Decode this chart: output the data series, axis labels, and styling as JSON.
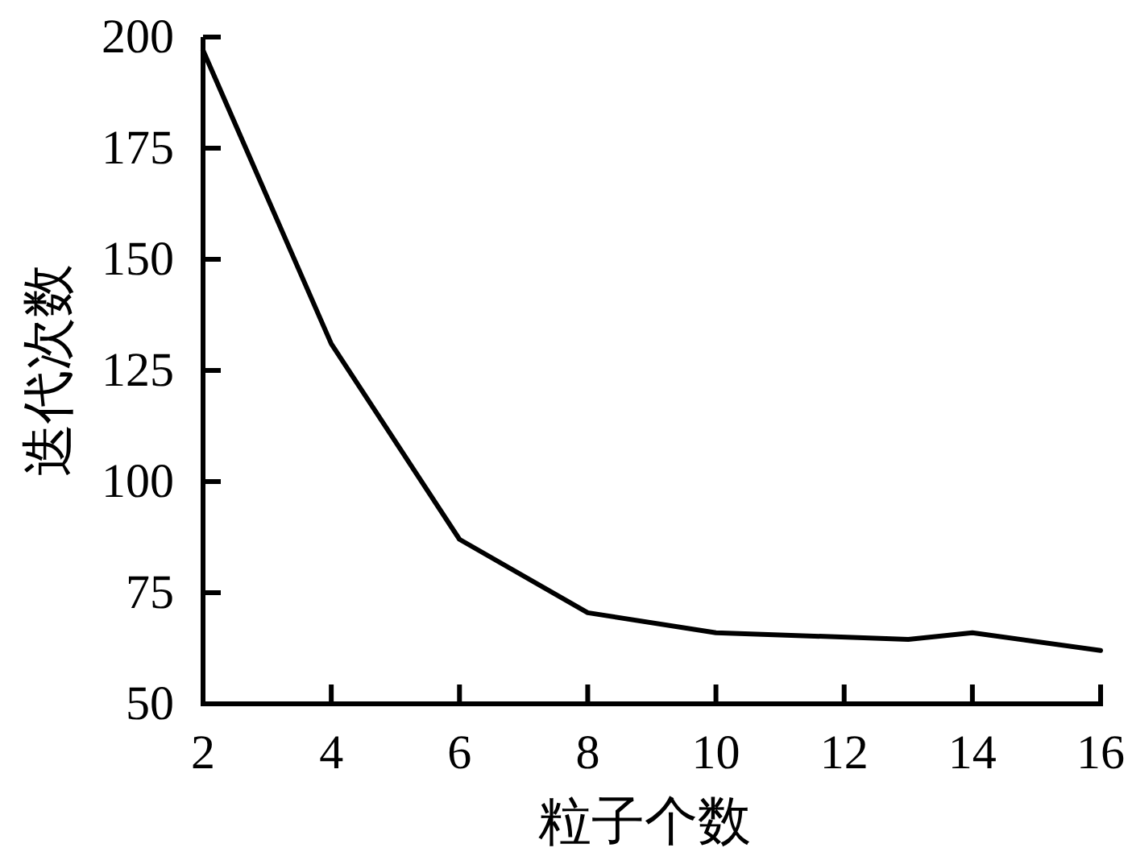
{
  "chart_data": {
    "type": "line",
    "xlabel": "粒子个数",
    "ylabel": "迭代次数",
    "x": [
      2,
      4,
      6,
      8,
      10,
      13,
      14,
      16
    ],
    "series": [
      {
        "color": "#000000",
        "values": [
          197,
          131,
          87,
          70.5,
          66,
          64.5,
          66,
          62
        ]
      }
    ],
    "xlim": [
      2,
      16
    ],
    "xticks": [
      2,
      4,
      6,
      8,
      10,
      12,
      14,
      16
    ],
    "ylim": [
      50,
      200
    ],
    "yticks": [
      50,
      75,
      100,
      125,
      150,
      175,
      200
    ],
    "grid": false,
    "marker": "none",
    "line_style": "solid"
  }
}
